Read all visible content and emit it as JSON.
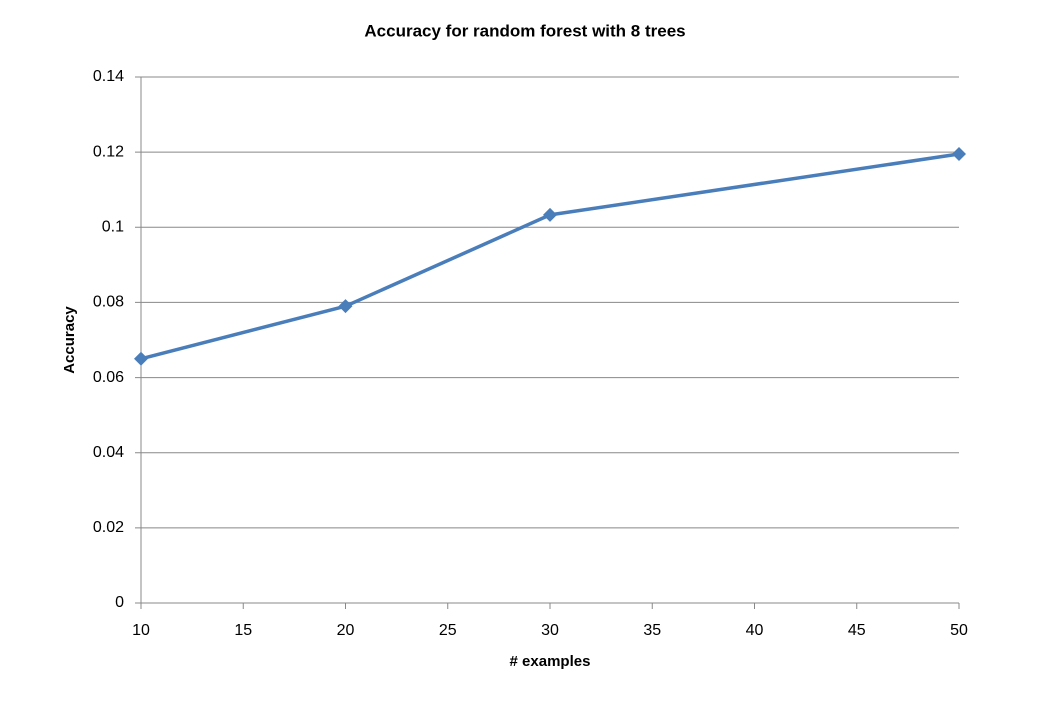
{
  "chart_data": {
    "type": "line",
    "title": "Accuracy for random forest with 8 trees",
    "x_label": "# examples",
    "y_label": "Accuracy",
    "x": [
      10,
      20,
      30,
      50
    ],
    "series": [
      {
        "name": "Accuracy",
        "color": "#4a7ebb",
        "values": [
          0.065,
          0.079,
          0.1033,
          0.1195
        ]
      }
    ],
    "xlim": [
      10,
      50
    ],
    "xticks": [
      10,
      15,
      20,
      25,
      30,
      35,
      40,
      45,
      50
    ],
    "ylim": [
      0,
      0.14
    ],
    "yticks": [
      0,
      0.02,
      0.04,
      0.06,
      0.08,
      0.1,
      0.12,
      0.14
    ],
    "grid": true
  }
}
